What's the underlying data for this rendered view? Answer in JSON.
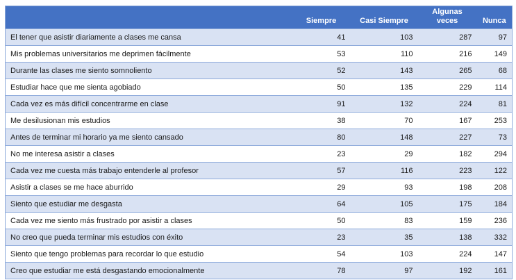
{
  "chart_data": {
    "type": "table",
    "title": "",
    "columns": [
      "Siempre",
      "Casi Siempre",
      "Algunas veces",
      "Nunca"
    ],
    "rows": [
      {
        "label": "El tener que asistir diariamente a clases me cansa",
        "values": [
          41,
          103,
          287,
          97
        ]
      },
      {
        "label": "Mis problemas universitarios me deprimen fácilmente",
        "values": [
          53,
          110,
          216,
          149
        ]
      },
      {
        "label": "Durante las clases me siento somnoliento",
        "values": [
          52,
          143,
          265,
          68
        ]
      },
      {
        "label": "Estudiar hace que me sienta agobiado",
        "values": [
          50,
          135,
          229,
          114
        ]
      },
      {
        "label": "Cada vez es más difícil concentrarme en clase",
        "values": [
          91,
          132,
          224,
          81
        ]
      },
      {
        "label": "Me desilusionan mis estudios",
        "values": [
          38,
          70,
          167,
          253
        ]
      },
      {
        "label": "Antes de terminar mi horario ya me siento cansado",
        "values": [
          80,
          148,
          227,
          73
        ]
      },
      {
        "label": "No me interesa asistir a clases",
        "values": [
          23,
          29,
          182,
          294
        ]
      },
      {
        "label": "Cada vez me cuesta más trabajo entenderle al profesor",
        "values": [
          57,
          116,
          223,
          122
        ]
      },
      {
        "label": "Asistir a clases se me hace aburrido",
        "values": [
          29,
          93,
          198,
          208
        ]
      },
      {
        "label": "Siento que estudiar me desgasta",
        "values": [
          64,
          105,
          175,
          184
        ]
      },
      {
        "label": "Cada vez me siento más frustrado por asistir a clases",
        "values": [
          50,
          83,
          159,
          236
        ]
      },
      {
        "label": "No creo que pueda terminar mis estudios con éxito",
        "values": [
          23,
          35,
          138,
          332
        ]
      },
      {
        "label": "Siento que tengo problemas para recordar lo que estudio",
        "values": [
          54,
          103,
          224,
          147
        ]
      },
      {
        "label": "Creo que estudiar me está desgastando emocionalmente",
        "values": [
          78,
          97,
          192,
          161
        ]
      }
    ]
  },
  "header": {
    "corner_label": "",
    "col_labels": [
      "Siempre",
      "Casi Siempre",
      "Algunas\nveces",
      "Nunca"
    ]
  },
  "colors": {
    "header_bg": "#4472C4",
    "header_text": "#FFFFFF",
    "band_row_bg": "#D9E2F3",
    "border": "#8EAADB",
    "body_text": "#1A1A1A"
  }
}
